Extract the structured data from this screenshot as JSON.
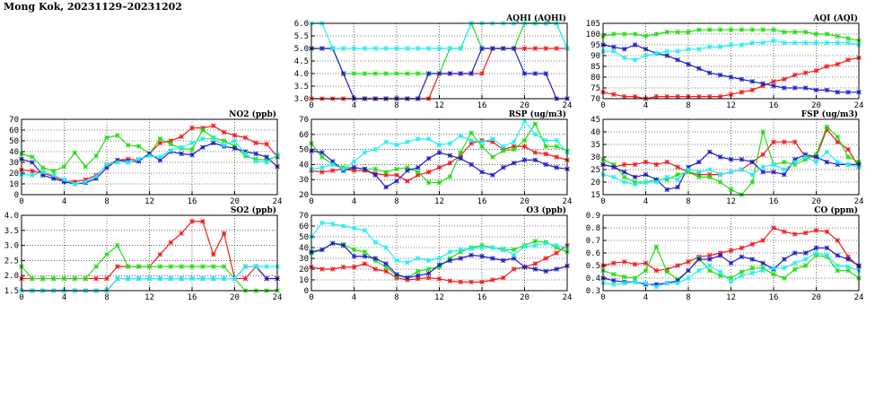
{
  "page": {
    "title": "Mong Kok, 20231129–20231202"
  },
  "colors": {
    "red": "#ee1c1c",
    "green": "#22dd11",
    "blue": "#1e1ec8",
    "cyan": "#22eeee"
  },
  "chart_data": [
    {
      "id": "aqhi",
      "type": "line",
      "title": "AQHI (AQHI)",
      "xlim": [
        0,
        24
      ],
      "xticks": [
        0,
        4,
        8,
        12,
        16,
        20,
        24
      ],
      "ylim": [
        3.0,
        6.0
      ],
      "yticks": [
        "3.0",
        "3.5",
        "4.0",
        "4.5",
        "5.0",
        "5.5",
        "6.0"
      ],
      "grid": true,
      "series": [
        {
          "color": "red",
          "values": [
            3,
            3,
            3,
            3,
            3,
            3,
            3,
            3,
            3,
            3,
            3,
            3,
            4,
            4,
            4,
            4,
            4,
            5,
            5,
            5,
            5,
            5,
            5,
            5,
            5
          ]
        },
        {
          "color": "green",
          "values": [
            5,
            5,
            5,
            4,
            4,
            4,
            4,
            4,
            4,
            4,
            4,
            4,
            4,
            5,
            5,
            6,
            5,
            5,
            5,
            5,
            6,
            6,
            6,
            6,
            5
          ]
        },
        {
          "color": "blue",
          "values": [
            5,
            5,
            5,
            4,
            3,
            3,
            3,
            3,
            3,
            3,
            3,
            4,
            4,
            4,
            4,
            4,
            5,
            5,
            5,
            5,
            4,
            4,
            4,
            3,
            3
          ]
        },
        {
          "color": "cyan",
          "values": [
            6,
            6,
            5,
            5,
            5,
            5,
            5,
            5,
            5,
            5,
            5,
            5,
            5,
            5,
            5,
            6,
            6,
            6,
            6,
            6,
            6,
            6,
            6,
            6,
            5
          ]
        }
      ]
    },
    {
      "id": "aqi",
      "type": "line",
      "title": "AQI (AQI)",
      "xlim": [
        0,
        24
      ],
      "xticks": [
        0,
        4,
        8,
        12,
        16,
        20,
        24
      ],
      "ylim": [
        70,
        105
      ],
      "yticks": [
        "70",
        "75",
        "80",
        "85",
        "90",
        "95",
        "100",
        "105"
      ],
      "grid": true,
      "series": [
        {
          "color": "red",
          "values": [
            73,
            72,
            71,
            71,
            70,
            71,
            71,
            71,
            71,
            71,
            71,
            71,
            72,
            73,
            74,
            76,
            78,
            79,
            81,
            82,
            83,
            85,
            86,
            88,
            89
          ]
        },
        {
          "color": "green",
          "values": [
            99,
            100,
            100,
            100,
            99,
            100,
            101,
            101,
            101,
            102,
            102,
            102,
            102,
            102,
            102,
            102,
            102,
            101,
            101,
            101,
            100,
            100,
            99,
            98,
            97
          ]
        },
        {
          "color": "blue",
          "values": [
            95,
            94,
            93,
            95,
            93,
            91,
            90,
            88,
            86,
            84,
            82,
            81,
            80,
            79,
            78,
            77,
            76,
            75,
            75,
            75,
            74,
            74,
            73,
            73,
            73
          ]
        },
        {
          "color": "cyan",
          "values": [
            92,
            92,
            89,
            88,
            90,
            91,
            92,
            92,
            93,
            93,
            94,
            94,
            95,
            95,
            96,
            96,
            97,
            96,
            96,
            96,
            96,
            96,
            96,
            96,
            95
          ]
        }
      ]
    },
    {
      "id": "no2",
      "type": "line",
      "title": "NO2 (ppb)",
      "xlim": [
        0,
        24
      ],
      "xticks": [
        0,
        4,
        8,
        12,
        16,
        20,
        24
      ],
      "ylim": [
        0,
        70
      ],
      "yticks": [
        "0",
        "10",
        "20",
        "30",
        "40",
        "50",
        "60",
        "70"
      ],
      "grid": true,
      "series": [
        {
          "color": "red",
          "values": [
            23,
            22,
            20,
            17,
            13,
            12,
            14,
            18,
            27,
            32,
            33,
            32,
            38,
            48,
            50,
            54,
            62,
            62,
            64,
            58,
            55,
            53,
            48,
            47,
            35
          ]
        },
        {
          "color": "green",
          "values": [
            38,
            35,
            25,
            22,
            26,
            39,
            26,
            36,
            53,
            55,
            46,
            45,
            38,
            52,
            47,
            43,
            42,
            60,
            53,
            50,
            45,
            36,
            33,
            32,
            36
          ]
        },
        {
          "color": "blue",
          "values": [
            33,
            30,
            18,
            15,
            12,
            10,
            11,
            15,
            25,
            32,
            31,
            31,
            38,
            32,
            40,
            38,
            37,
            44,
            48,
            45,
            43,
            40,
            38,
            35,
            26
          ]
        },
        {
          "color": "cyan",
          "values": [
            19,
            18,
            21,
            18,
            14,
            10,
            12,
            17,
            28,
            30,
            30,
            33,
            36,
            35,
            41,
            44,
            48,
            52,
            52,
            46,
            50,
            38,
            31,
            30,
            37
          ]
        }
      ]
    },
    {
      "id": "rsp",
      "type": "line",
      "title": "RSP (ug/m3)",
      "xlim": [
        0,
        24
      ],
      "xticks": [
        0,
        4,
        8,
        12,
        16,
        20,
        24
      ],
      "ylim": [
        20,
        70
      ],
      "yticks": [
        "20",
        "30",
        "40",
        "50",
        "60",
        "70"
      ],
      "grid": true,
      "series": [
        {
          "color": "red",
          "values": [
            36,
            35,
            36,
            37,
            36,
            36,
            34,
            33,
            33,
            29,
            33,
            35,
            38,
            41,
            46,
            54,
            56,
            55,
            50,
            52,
            52,
            48,
            47,
            45,
            43
          ]
        },
        {
          "color": "green",
          "values": [
            54,
            45,
            40,
            38,
            38,
            37,
            37,
            35,
            37,
            38,
            35,
            28,
            28,
            32,
            48,
            61,
            52,
            45,
            49,
            50,
            56,
            67,
            52,
            52,
            49
          ]
        },
        {
          "color": "blue",
          "values": [
            49,
            48,
            42,
            36,
            38,
            37,
            33,
            25,
            29,
            36,
            38,
            44,
            48,
            46,
            44,
            40,
            35,
            33,
            38,
            41,
            43,
            43,
            40,
            38,
            37
          ]
        },
        {
          "color": "cyan",
          "values": [
            37,
            38,
            40,
            37,
            42,
            48,
            50,
            55,
            53,
            55,
            57,
            57,
            53,
            54,
            59,
            56,
            55,
            57,
            52,
            55,
            69,
            60,
            56,
            56,
            48
          ]
        }
      ]
    },
    {
      "id": "fsp",
      "type": "line",
      "title": "FSP (ug/m3)",
      "xlim": [
        0,
        24
      ],
      "xticks": [
        0,
        4,
        8,
        12,
        16,
        20,
        24
      ],
      "ylim": [
        15,
        45
      ],
      "yticks": [
        "15",
        "20",
        "25",
        "30",
        "35",
        "40",
        "45"
      ],
      "grid": true,
      "series": [
        {
          "color": "red",
          "values": [
            27,
            26,
            27,
            27,
            28,
            27,
            28,
            26,
            24,
            23,
            23,
            23,
            24,
            25,
            28,
            31,
            36,
            36,
            36,
            30,
            30,
            41,
            36,
            33,
            26
          ]
        },
        {
          "color": "green",
          "values": [
            29,
            27,
            22,
            20,
            20,
            21,
            21,
            23,
            24,
            22,
            22,
            20,
            17,
            15,
            20,
            40,
            27,
            28,
            27,
            29,
            31,
            42,
            38,
            30,
            28
          ]
        },
        {
          "color": "blue",
          "values": [
            27,
            26,
            24,
            22,
            23,
            21,
            17,
            18,
            26,
            28,
            32,
            30,
            29,
            29,
            28,
            24,
            24,
            23,
            29,
            31,
            30,
            28,
            27,
            27,
            27
          ]
        },
        {
          "color": "cyan",
          "values": [
            23,
            22,
            20,
            19,
            20,
            20,
            22,
            21,
            25,
            24,
            25,
            23,
            24,
            25,
            23,
            26,
            27,
            25,
            28,
            30,
            28,
            32,
            28,
            27,
            26
          ]
        }
      ]
    },
    {
      "id": "so2",
      "type": "line",
      "title": "SO2 (ppb)",
      "xlim": [
        0,
        24
      ],
      "xticks": [
        0,
        4,
        8,
        12,
        16,
        20,
        24
      ],
      "ylim": [
        1.5,
        4.0
      ],
      "yticks": [
        "1.5",
        "2.0",
        "2.5",
        "3.0",
        "3.5",
        "4.0"
      ],
      "grid": true,
      "series": [
        {
          "color": "red",
          "values": [
            1.9,
            1.9,
            1.9,
            1.9,
            1.9,
            1.9,
            1.9,
            1.9,
            1.9,
            2.3,
            2.3,
            2.3,
            2.3,
            2.7,
            3.1,
            3.4,
            3.8,
            3.8,
            2.7,
            3.4,
            1.9,
            1.9,
            2.3,
            1.9,
            1.9
          ]
        },
        {
          "color": "green",
          "values": [
            2.3,
            1.9,
            1.9,
            1.9,
            1.9,
            1.9,
            1.9,
            2.3,
            2.7,
            3.0,
            2.3,
            2.3,
            2.3,
            2.3,
            2.3,
            2.3,
            2.3,
            2.3,
            2.3,
            2.3,
            1.9,
            1.5,
            1.5,
            1.5,
            1.5
          ]
        },
        {
          "color": "blue",
          "values": [
            1.5,
            1.5,
            1.5,
            1.5,
            1.5,
            1.5,
            1.5,
            1.5,
            1.5,
            1.9,
            1.9,
            1.9,
            1.9,
            1.9,
            1.9,
            1.9,
            1.9,
            1.9,
            1.9,
            1.9,
            1.9,
            2.3,
            2.3,
            1.9,
            1.9
          ]
        },
        {
          "color": "cyan",
          "values": [
            1.5,
            1.5,
            1.5,
            1.5,
            1.5,
            1.5,
            1.5,
            1.5,
            1.5,
            1.9,
            1.9,
            1.9,
            1.9,
            1.9,
            1.9,
            1.9,
            1.9,
            1.9,
            1.9,
            1.9,
            1.9,
            2.3,
            2.3,
            2.3,
            2.3
          ]
        }
      ]
    },
    {
      "id": "o3",
      "type": "line",
      "title": "O3 (ppb)",
      "xlim": [
        0,
        24
      ],
      "xticks": [
        0,
        4,
        8,
        12,
        16,
        20,
        24
      ],
      "ylim": [
        0,
        70
      ],
      "yticks": [
        "0",
        "10",
        "20",
        "30",
        "40",
        "50",
        "60",
        "70"
      ],
      "grid": true,
      "series": [
        {
          "color": "red",
          "values": [
            22,
            20,
            20,
            22,
            22,
            25,
            20,
            18,
            12,
            10,
            11,
            12,
            11,
            9,
            8,
            8,
            8,
            10,
            12,
            20,
            22,
            25,
            30,
            35,
            42
          ]
        },
        {
          "color": "green",
          "values": [
            35,
            38,
            44,
            43,
            38,
            36,
            28,
            22,
            14,
            12,
            18,
            20,
            22,
            30,
            36,
            40,
            42,
            40,
            38,
            38,
            42,
            46,
            45,
            40,
            36
          ]
        },
        {
          "color": "blue",
          "values": [
            36,
            38,
            44,
            42,
            32,
            32,
            30,
            25,
            15,
            12,
            14,
            16,
            24,
            28,
            30,
            33,
            32,
            30,
            28,
            30,
            22,
            20,
            18,
            20,
            23
          ]
        },
        {
          "color": "cyan",
          "values": [
            50,
            63,
            62,
            60,
            58,
            56,
            45,
            40,
            28,
            26,
            30,
            28,
            30,
            36,
            38,
            39,
            40,
            40,
            39,
            33,
            41,
            42,
            44,
            42,
            40
          ]
        }
      ]
    },
    {
      "id": "co",
      "type": "line",
      "title": "CO (ppm)",
      "xlim": [
        0,
        24
      ],
      "xticks": [
        0,
        4,
        8,
        12,
        16,
        20,
        24
      ],
      "ylim": [
        0.3,
        0.9
      ],
      "yticks": [
        "0.3",
        "0.4",
        "0.5",
        "0.6",
        "0.7",
        "0.8",
        "0.9"
      ],
      "grid": true,
      "series": [
        {
          "color": "red",
          "values": [
            0.5,
            0.52,
            0.53,
            0.51,
            0.52,
            0.46,
            0.47,
            0.5,
            0.53,
            0.57,
            0.58,
            0.6,
            0.62,
            0.64,
            0.67,
            0.7,
            0.8,
            0.77,
            0.75,
            0.76,
            0.78,
            0.77,
            0.7,
            0.57,
            0.49
          ]
        },
        {
          "color": "green",
          "values": [
            0.46,
            0.43,
            0.41,
            0.4,
            0.46,
            0.65,
            0.45,
            0.39,
            0.46,
            0.56,
            0.46,
            0.42,
            0.4,
            0.45,
            0.48,
            0.48,
            0.43,
            0.4,
            0.47,
            0.5,
            0.58,
            0.57,
            0.46,
            0.46,
            0.4
          ]
        },
        {
          "color": "blue",
          "values": [
            0.4,
            0.38,
            0.37,
            0.37,
            0.35,
            0.35,
            0.36,
            0.38,
            0.46,
            0.55,
            0.55,
            0.58,
            0.52,
            0.57,
            0.55,
            0.52,
            0.47,
            0.55,
            0.6,
            0.6,
            0.64,
            0.64,
            0.58,
            0.55,
            0.5
          ]
        },
        {
          "color": "cyan",
          "values": [
            0.36,
            0.35,
            0.36,
            0.37,
            0.36,
            0.33,
            0.36,
            0.36,
            0.4,
            0.46,
            0.5,
            0.45,
            0.37,
            0.42,
            0.44,
            0.46,
            0.48,
            0.48,
            0.52,
            0.55,
            0.6,
            0.58,
            0.5,
            0.49,
            0.46
          ]
        }
      ]
    }
  ]
}
